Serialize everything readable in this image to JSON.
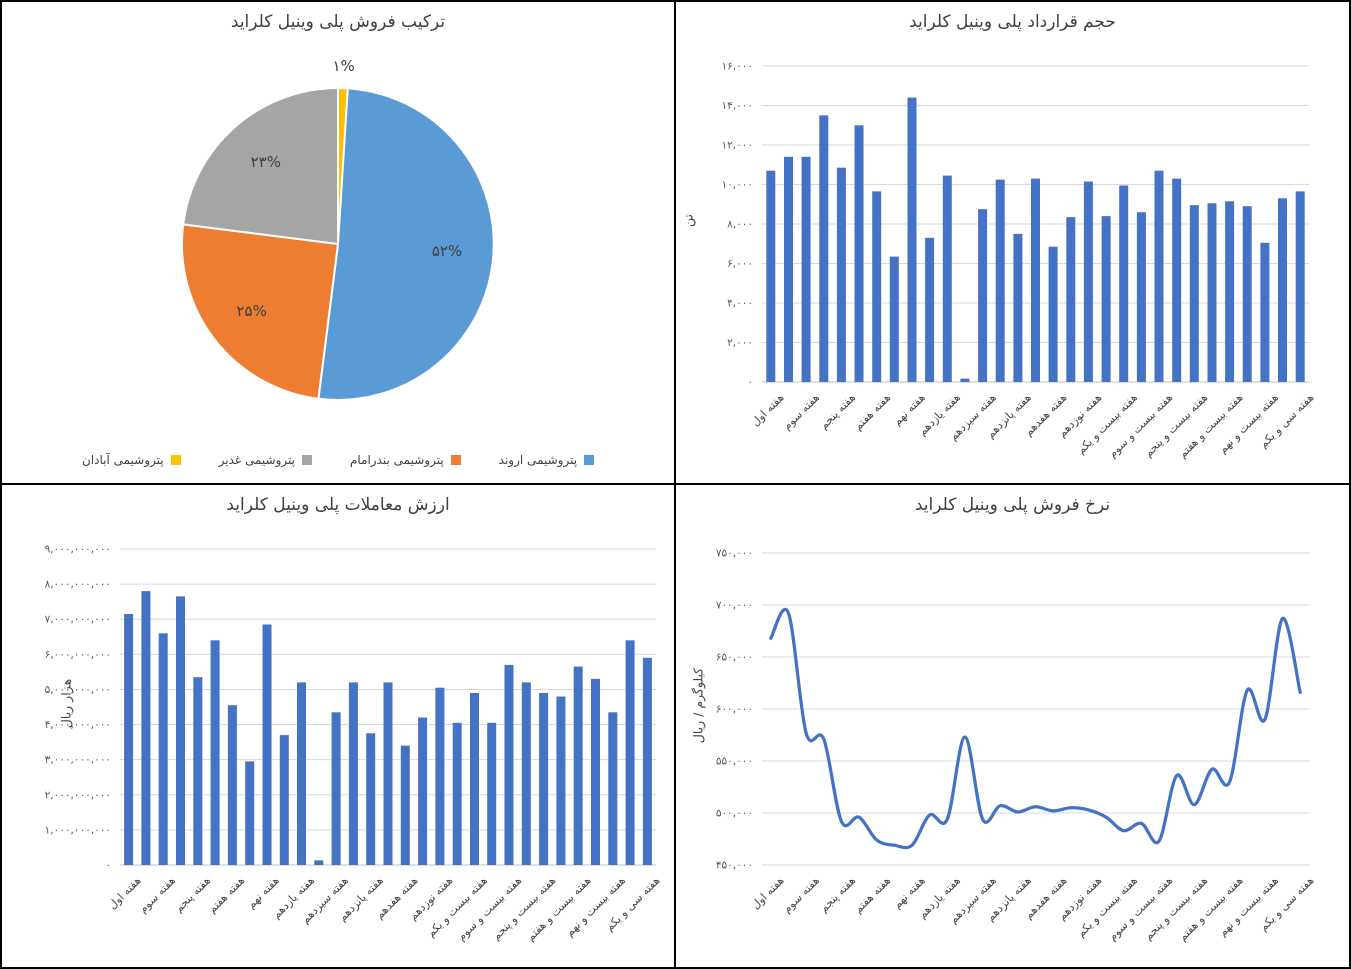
{
  "chart_data": [
    {
      "id": "sales_mix",
      "type": "pie",
      "title": "ترکیب فروش پلی وینیل کلراید",
      "labels": [
        "پتروشیمی اروند",
        "پتروشیمی بندرامام",
        "پتروشیمی غدیر",
        "پتروشیمی آبادان"
      ],
      "values": [
        52,
        25,
        23,
        1
      ],
      "data_labels": [
        "۵۲%",
        "۲۵%",
        "۲۳%",
        "۱%"
      ],
      "colors": [
        "#5B9BD5",
        "#ED7D31",
        "#A5A5A5",
        "#FFC000"
      ],
      "legend_position": "bottom"
    },
    {
      "id": "contract_volume",
      "type": "bar",
      "title": "حجم قرارداد پلی وینیل کلراید",
      "ylabel": "تن",
      "ylim": [
        0,
        16000
      ],
      "y_tick_labels": [
        "۰",
        "۲,۰۰۰",
        "۴,۰۰۰",
        "۶,۰۰۰",
        "۸,۰۰۰",
        "۱۰,۰۰۰",
        "۱۲,۰۰۰",
        "۱۴,۰۰۰",
        "۱۶,۰۰۰"
      ],
      "categories": [
        "هفته اول",
        "هفته سوم",
        "هفته پنجم",
        "هفته هفتم",
        "هفته نهم",
        "هفته یازدهم",
        "هفته سیزدهم",
        "هفته پانزدهم",
        "هفته هفدهم",
        "هفته نوزدهم",
        "هفته بیست و یکم",
        "هفته بیست و سوم",
        "هفته بیست و پنجم",
        "هفته بیست و هفتم",
        "هفته بیست و نهم",
        "هفته سی و یکم"
      ],
      "x_label_every": 2,
      "values": [
        10700,
        11400,
        11400,
        13500,
        10850,
        13000,
        9650,
        6350,
        14400,
        7300,
        10450,
        170,
        8750,
        10250,
        7500,
        10300,
        6850,
        8350,
        10150,
        8400,
        9950,
        8600,
        10700,
        10300,
        8950,
        9050,
        9150,
        8900,
        7050,
        9300,
        9650
      ],
      "bar_color": "#4472C4",
      "grid": true
    },
    {
      "id": "trade_value",
      "type": "bar",
      "title": "ارزش معاملات پلی وینیل کلراید",
      "ylabel": "هزار ریال",
      "ylim": [
        0,
        9000000000
      ],
      "y_tick_labels": [
        "۰",
        "۱,۰۰۰,۰۰۰,۰۰۰",
        "۲,۰۰۰,۰۰۰,۰۰۰",
        "۳,۰۰۰,۰۰۰,۰۰۰",
        "۴,۰۰۰,۰۰۰,۰۰۰",
        "۵,۰۰۰,۰۰۰,۰۰۰",
        "۶,۰۰۰,۰۰۰,۰۰۰",
        "۷,۰۰۰,۰۰۰,۰۰۰",
        "۸,۰۰۰,۰۰۰,۰۰۰",
        "۹,۰۰۰,۰۰۰,۰۰۰"
      ],
      "categories": [
        "هفته اول",
        "هفته سوم",
        "هفته پنجم",
        "هفته هفتم",
        "هفته نهم",
        "هفته یازدهم",
        "هفته سیزدهم",
        "هفته پانزدهم",
        "هفته هفدهم",
        "هفته نوزدهم",
        "هفته بیست و یکم",
        "هفته بیست و سوم",
        "هفته بیست و پنجم",
        "هفته بیست و هفتم",
        "هفته بیست و نهم",
        "هفته سی و یکم"
      ],
      "x_label_every": 2,
      "values": [
        7150000000,
        7800000000,
        6600000000,
        7650000000,
        5350000000,
        6400000000,
        4550000000,
        2950000000,
        6850000000,
        3700000000,
        5200000000,
        130000000,
        4350000000,
        5200000000,
        3750000000,
        5200000000,
        3400000000,
        4200000000,
        5050000000,
        4050000000,
        4900000000,
        4050000000,
        5700000000,
        5200000000,
        4900000000,
        4800000000,
        5650000000,
        5300000000,
        4350000000,
        6400000000,
        5900000000
      ],
      "bar_color": "#4472C4",
      "grid": true
    },
    {
      "id": "sales_rate",
      "type": "line",
      "title": "نرخ فروش پلی وینیل کلراید",
      "ylabel": "کیلوگرم / ریال",
      "ylim": [
        450000,
        750000
      ],
      "y_tick_labels": [
        "۴۵۰,۰۰۰",
        "۵۰۰,۰۰۰",
        "۵۵۰,۰۰۰",
        "۶۰۰,۰۰۰",
        "۶۵۰,۰۰۰",
        "۷۰۰,۰۰۰",
        "۷۵۰,۰۰۰"
      ],
      "categories": [
        "هفته اول",
        "هفته سوم",
        "هفته پنجم",
        "هفته هفتم",
        "هفته نهم",
        "هفته یازدهم",
        "هفته سیزدهم",
        "هفته پانزدهم",
        "هفته هفدهم",
        "هفته نوزدهم",
        "هفته بیست و یکم",
        "هفته بیست و سوم",
        "هفته بیست و پنجم",
        "هفته بیست و هفتم",
        "هفته بیست و نهم",
        "هفته سی و یکم"
      ],
      "x_label_every": 2,
      "values": [
        668000,
        692000,
        577000,
        571000,
        492000,
        496000,
        474000,
        469000,
        469000,
        498000,
        494000,
        573000,
        494000,
        507000,
        501000,
        506000,
        502000,
        505000,
        503000,
        496000,
        483000,
        490000,
        473000,
        536000,
        508000,
        542000,
        530000,
        618000,
        590000,
        687000,
        616000
      ],
      "line_color": "#4472C4",
      "smooth": true,
      "grid": true
    }
  ]
}
